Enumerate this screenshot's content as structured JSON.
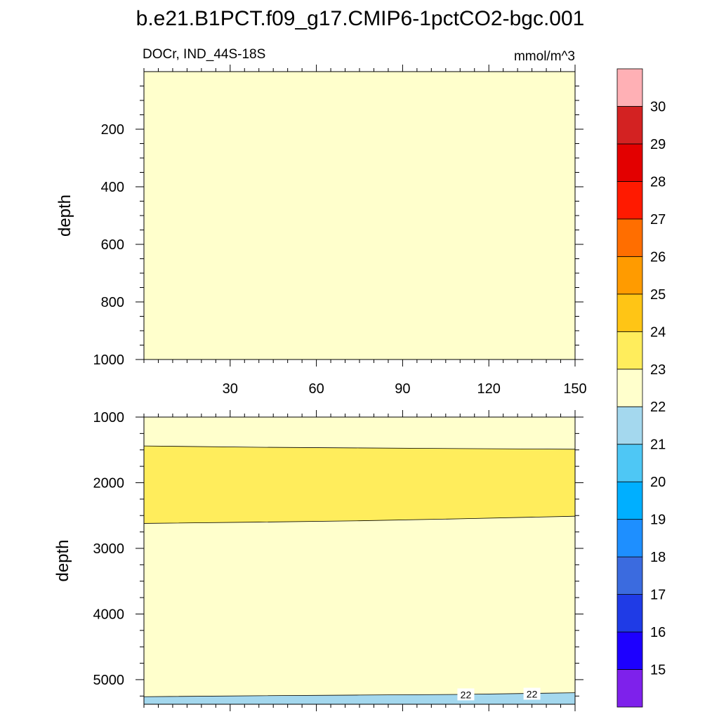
{
  "title": "b.e21.B1PCT.f09_g17.CMIP6-1pctCO2-bgc.001",
  "subtitle_left": "DOCr, IND_44S-18S",
  "subtitle_right": "mmol/m^3",
  "chart_data": [
    {
      "type": "contour",
      "panel": "top",
      "ylabel": "depth",
      "xlim": [
        0,
        150
      ],
      "ylim": [
        0,
        1000
      ],
      "y_reversed": true,
      "x_ticks": [
        30,
        60,
        90,
        120,
        150
      ],
      "y_ticks": [
        200,
        400,
        600,
        800,
        1000
      ],
      "regions": [
        {
          "band": "22-23",
          "color": "#FFFFCC",
          "top": [
            {
              "x": 0,
              "y": 0
            },
            {
              "x": 150,
              "y": 0
            }
          ],
          "bottom": [
            {
              "x": 0,
              "y": 1000
            },
            {
              "x": 150,
              "y": 1000
            }
          ]
        }
      ]
    },
    {
      "type": "contour",
      "panel": "bottom",
      "ylabel": "depth",
      "xlim": [
        0,
        150
      ],
      "ylim": [
        1000,
        5375
      ],
      "y_reversed": true,
      "x_ticks": [
        30,
        60,
        90,
        120,
        150
      ],
      "y_ticks": [
        1000,
        2000,
        3000,
        4000,
        5000
      ],
      "regions": [
        {
          "band": "22-23",
          "color": "#FFFFCC",
          "top": [
            {
              "x": 0,
              "y": 1000
            },
            {
              "x": 150,
              "y": 1000
            }
          ],
          "bottom": [
            {
              "x": 0,
              "y": 5375
            },
            {
              "x": 150,
              "y": 5375
            }
          ]
        },
        {
          "band": "23-24",
          "color": "#FFED5C",
          "top": [
            {
              "x": 0,
              "y": 1440
            },
            {
              "x": 40,
              "y": 1460
            },
            {
              "x": 75,
              "y": 1470
            },
            {
              "x": 110,
              "y": 1480
            },
            {
              "x": 150,
              "y": 1490
            }
          ],
          "bottom": [
            {
              "x": 0,
              "y": 2620
            },
            {
              "x": 40,
              "y": 2600
            },
            {
              "x": 75,
              "y": 2580
            },
            {
              "x": 110,
              "y": 2550
            },
            {
              "x": 150,
              "y": 2510
            }
          ]
        },
        {
          "band": "21-22",
          "color": "#A4D8EE",
          "top": [
            {
              "x": 0,
              "y": 5260
            },
            {
              "x": 40,
              "y": 5245
            },
            {
              "x": 75,
              "y": 5235
            },
            {
              "x": 110,
              "y": 5225
            },
            {
              "x": 150,
              "y": 5200
            }
          ],
          "bottom": [
            {
              "x": 0,
              "y": 5375
            },
            {
              "x": 150,
              "y": 5375
            }
          ]
        }
      ],
      "contour_labels": [
        {
          "text": "22",
          "x": 112,
          "y": 5230
        },
        {
          "text": "22",
          "x": 135,
          "y": 5220
        }
      ]
    }
  ],
  "colorbar": {
    "orientation": "vertical",
    "labels": [
      "15",
      "16",
      "17",
      "18",
      "19",
      "20",
      "21",
      "22",
      "23",
      "24",
      "25",
      "26",
      "27",
      "28",
      "29",
      "30"
    ],
    "colors_bottom_to_top": [
      "#7E21EB",
      "#1D00FF",
      "#1F3BE6",
      "#3B6BDF",
      "#1E8FFF",
      "#00AFFF",
      "#4EC7F5",
      "#A4D8EE",
      "#FFFFCC",
      "#FFED5C",
      "#FFC515",
      "#FF9B00",
      "#FF6E00",
      "#FF1A00",
      "#E30000",
      "#D32222",
      "#FFB0B5"
    ]
  }
}
